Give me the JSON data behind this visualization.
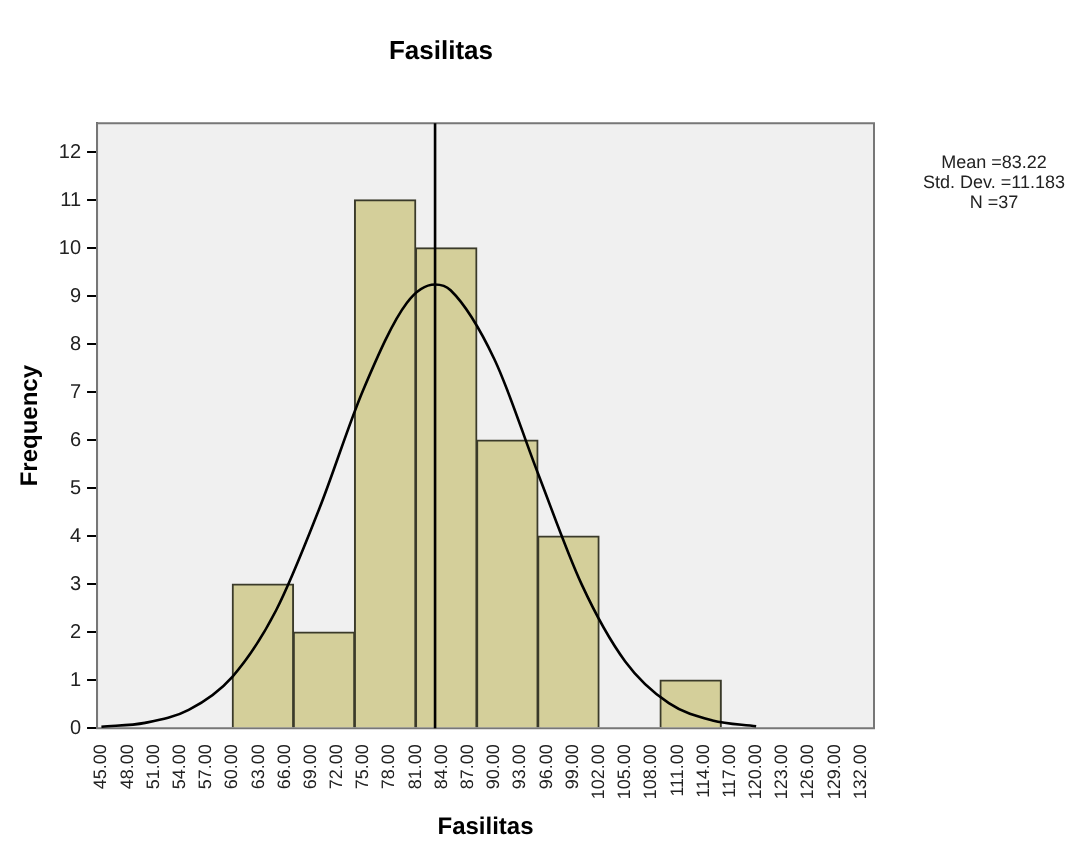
{
  "chart_data": {
    "type": "histogram",
    "title": "Fasilitas",
    "xlabel": "Fasilitas",
    "ylabel": "Frequency",
    "bins": [
      60,
      67,
      74,
      81,
      88,
      95,
      102,
      109,
      116
    ],
    "values": [
      3,
      2,
      11,
      10,
      6,
      4,
      0,
      1
    ],
    "color": "#d4cf9a",
    "series": [
      {
        "type": "line",
        "color": "#000000",
        "x": [
          45,
          50,
          55,
          60,
          65,
          70,
          75,
          80,
          83.22,
          85,
          90,
          95,
          100,
          105,
          110,
          115,
          120
        ],
        "values": [
          0.03,
          0.11,
          0.38,
          1.07,
          2.45,
          4.59,
          7.05,
          8.86,
          9.24,
          9.12,
          7.69,
          5.31,
          3.0,
          1.39,
          0.52,
          0.16,
          0.04
        ]
      }
    ],
    "ref_lines": [
      {
        "axis": "x",
        "value": 83.22,
        "label": null,
        "color": "#000000"
      }
    ],
    "xlim": [
      44.5,
      133.5
    ],
    "xticks": [
      {
        "value": 45,
        "label": "45.00"
      },
      {
        "value": 48,
        "label": "48.00"
      },
      {
        "value": 51,
        "label": "51.00"
      },
      {
        "value": 54,
        "label": "54.00"
      },
      {
        "value": 57,
        "label": "57.00"
      },
      {
        "value": 60,
        "label": "60.00"
      },
      {
        "value": 63,
        "label": "63.00"
      },
      {
        "value": 66,
        "label": "66.00"
      },
      {
        "value": 69,
        "label": "69.00"
      },
      {
        "value": 72,
        "label": "72.00"
      },
      {
        "value": 75,
        "label": "75.00"
      },
      {
        "value": 78,
        "label": "78.00"
      },
      {
        "value": 81,
        "label": "81.00"
      },
      {
        "value": 84,
        "label": "84.00"
      },
      {
        "value": 87,
        "label": "87.00"
      },
      {
        "value": 90,
        "label": "90.00"
      },
      {
        "value": 93,
        "label": "93.00"
      },
      {
        "value": 96,
        "label": "96.00"
      },
      {
        "value": 99,
        "label": "99.00"
      },
      {
        "value": 102,
        "label": "102.00"
      },
      {
        "value": 105,
        "label": "105.00"
      },
      {
        "value": 108,
        "label": "108.00"
      },
      {
        "value": 111,
        "label": "111.00"
      },
      {
        "value": 114,
        "label": "114.00"
      },
      {
        "value": 117,
        "label": "117.00"
      },
      {
        "value": 120,
        "label": "120.00"
      },
      {
        "value": 123,
        "label": "123.00"
      },
      {
        "value": 126,
        "label": "126.00"
      },
      {
        "value": 129,
        "label": "129.00"
      },
      {
        "value": 132,
        "label": "132.00"
      }
    ],
    "ylim": [
      0,
      12.6
    ],
    "yticks": [
      0,
      1,
      2,
      3,
      4,
      5,
      6,
      7,
      8,
      9,
      10,
      11,
      12
    ],
    "grid": false,
    "legend": false,
    "annotations": [
      "Mean =83.22",
      "Std. Dev. =11.183",
      "N =37"
    ]
  }
}
